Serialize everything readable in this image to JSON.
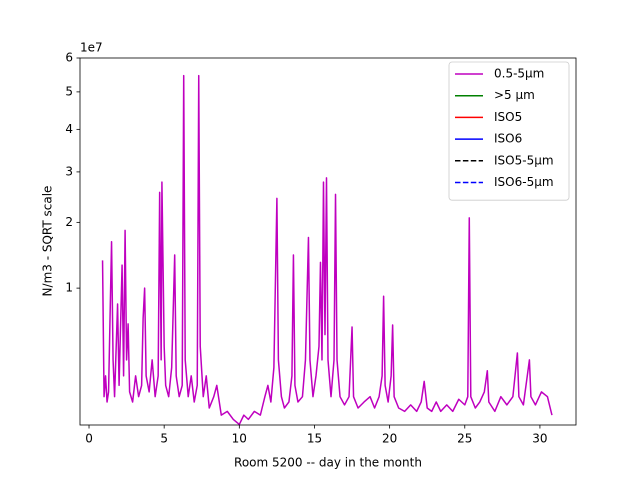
{
  "chart_data": {
    "type": "line",
    "xlabel": "Room 5200 -- day in the month",
    "ylabel": "N/m3 - SQRT scale",
    "y_offset_label": "1e7",
    "yscale": "sqrt",
    "xlim": [
      -0.6,
      32.4
    ],
    "xticks": [
      0,
      5,
      10,
      15,
      20,
      25,
      30
    ],
    "ylim": [
      0.019,
      6
    ],
    "yticks": [
      1,
      2,
      3,
      4,
      5,
      6
    ],
    "legend": "upper right",
    "series": [
      {
        "name": "0.5-5µm",
        "color": "#bf00bf",
        "dash": "solid",
        "x": [
          0.9,
          1.0,
          1.1,
          1.2,
          1.3,
          1.5,
          1.6,
          1.7,
          1.9,
          2.0,
          2.2,
          2.3,
          2.4,
          2.5,
          2.6,
          2.7,
          2.9,
          3.1,
          3.3,
          3.5,
          3.6,
          3.7,
          3.8,
          4.0,
          4.2,
          4.4,
          4.6,
          4.7,
          4.8,
          4.85,
          5.0,
          5.1,
          5.3,
          5.5,
          5.7,
          5.8,
          6.0,
          6.2,
          6.3,
          6.4,
          6.6,
          6.8,
          7.0,
          7.2,
          7.3,
          7.4,
          7.6,
          7.8,
          8.0,
          8.3,
          8.5,
          8.8,
          9.2,
          9.6,
          10.0,
          10.3,
          10.6,
          11.0,
          11.4,
          11.7,
          11.9,
          12.1,
          12.3,
          12.5,
          12.6,
          12.8,
          13.0,
          13.3,
          13.5,
          13.6,
          13.7,
          13.9,
          14.2,
          14.4,
          14.6,
          14.7,
          14.9,
          15.1,
          15.3,
          15.4,
          15.5,
          15.6,
          15.7,
          15.8,
          15.9,
          16.1,
          16.3,
          16.4,
          16.5,
          16.7,
          17.0,
          17.3,
          17.5,
          17.6,
          17.9,
          18.3,
          18.7,
          19.0,
          19.3,
          19.5,
          19.6,
          19.7,
          19.9,
          20.1,
          20.2,
          20.3,
          20.6,
          21.0,
          21.4,
          21.8,
          22.1,
          22.3,
          22.5,
          22.8,
          23.1,
          23.4,
          23.8,
          24.2,
          24.6,
          25.0,
          25.2,
          25.3,
          25.4,
          25.7,
          26.0,
          26.3,
          26.5,
          26.6,
          27.0,
          27.4,
          27.8,
          28.2,
          28.5,
          28.6,
          28.9,
          29.3,
          29.4,
          29.7,
          30.1,
          30.5,
          30.8
        ],
        "values": [
          1.38,
          0.1,
          0.2,
          0.08,
          0.12,
          1.67,
          0.3,
          0.1,
          0.81,
          0.15,
          1.31,
          0.2,
          1.86,
          0.3,
          0.6,
          0.12,
          0.08,
          0.2,
          0.1,
          0.15,
          0.66,
          1.0,
          0.2,
          0.12,
          0.3,
          0.1,
          0.2,
          2.57,
          0.3,
          2.78,
          0.4,
          0.15,
          0.1,
          0.25,
          1.46,
          0.2,
          0.1,
          0.15,
          5.47,
          0.3,
          0.1,
          0.2,
          0.08,
          0.15,
          5.47,
          0.4,
          0.1,
          0.2,
          0.06,
          0.1,
          0.15,
          0.04,
          0.05,
          0.03,
          0.02,
          0.04,
          0.03,
          0.05,
          0.04,
          0.1,
          0.15,
          0.08,
          0.25,
          2.45,
          0.3,
          0.1,
          0.06,
          0.08,
          0.2,
          1.46,
          0.15,
          0.08,
          0.1,
          0.3,
          1.74,
          0.3,
          0.1,
          0.2,
          0.4,
          1.35,
          0.3,
          2.78,
          0.5,
          2.87,
          0.3,
          0.1,
          0.3,
          2.53,
          0.3,
          0.1,
          0.07,
          0.1,
          0.57,
          0.1,
          0.06,
          0.08,
          0.1,
          0.06,
          0.1,
          0.2,
          0.9,
          0.15,
          0.08,
          0.2,
          0.59,
          0.1,
          0.06,
          0.05,
          0.07,
          0.05,
          0.08,
          0.17,
          0.06,
          0.05,
          0.08,
          0.05,
          0.07,
          0.05,
          0.09,
          0.07,
          0.1,
          2.08,
          0.1,
          0.06,
          0.08,
          0.12,
          0.23,
          0.08,
          0.05,
          0.1,
          0.07,
          0.1,
          0.35,
          0.1,
          0.07,
          0.3,
          0.1,
          0.07,
          0.12,
          0.1,
          0.04
        ]
      },
      {
        "name": ">5 µm",
        "color": "#008000",
        "dash": "solid",
        "x": [],
        "values": []
      },
      {
        "name": "ISO5",
        "color": "#ff0000",
        "dash": "solid",
        "x": [],
        "values": []
      },
      {
        "name": "ISO6",
        "color": "#0000ff",
        "dash": "solid",
        "x": [],
        "values": []
      },
      {
        "name": "ISO5-5µm",
        "color": "#000000",
        "dash": "dashed",
        "x": [],
        "values": []
      },
      {
        "name": "ISO6-5µm",
        "color": "#0000ff",
        "dash": "dashed",
        "x": [],
        "values": []
      }
    ]
  }
}
